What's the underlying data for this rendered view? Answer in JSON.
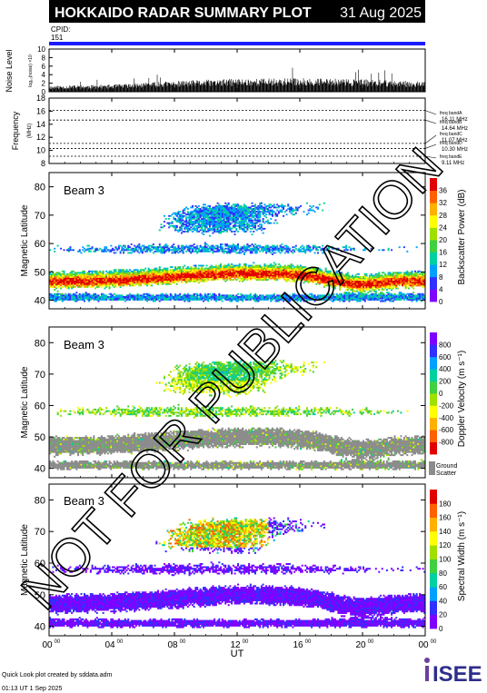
{
  "header": {
    "title": "HOKKAIDO RADAR SUMMARY PLOT",
    "date": "31 Aug 2025",
    "cpid_label": "CPID:",
    "cpid_value": "151"
  },
  "colors": {
    "header_bg": "#000000",
    "header_text": "#ffffff",
    "cpid_bar": "#1a1aff",
    "ground_scatter": "#8c8c8c",
    "watermark": "#000000"
  },
  "watermark": "NOT FOR PUBLICATION",
  "footer": {
    "credit": "Quick Look plot created by sddata.adm",
    "timestamp": "01:13 UT  1 Sep 2025",
    "logo_text": "ISEE"
  },
  "x_axis": {
    "label": "UT",
    "ticks": [
      {
        "hour": 0,
        "label": "00",
        "sup": "00"
      },
      {
        "hour": 4,
        "label": "04",
        "sup": "00"
      },
      {
        "hour": 8,
        "label": "08",
        "sup": "00"
      },
      {
        "hour": 12,
        "label": "12",
        "sup": "00"
      },
      {
        "hour": 16,
        "label": "16",
        "sup": "00"
      },
      {
        "hour": 20,
        "label": "20",
        "sup": "00"
      },
      {
        "hour": 24,
        "label": "00",
        "sup": "00"
      }
    ]
  },
  "chart_data": [
    {
      "type": "bar",
      "ylabel": "Noise Level",
      "ylabel_sub": "log₁₀(noise) ×10",
      "ylim": [
        0,
        10
      ],
      "yticks": [
        0,
        2,
        4,
        6,
        8,
        10
      ],
      "profile": [
        {
          "hour": 0,
          "value": 1.0
        },
        {
          "hour": 4,
          "value": 1.2
        },
        {
          "hour": 8,
          "value": 1.8
        },
        {
          "hour": 12,
          "value": 2.2
        },
        {
          "hour": 16,
          "value": 2.3
        },
        {
          "hour": 20,
          "value": 2.1
        },
        {
          "hour": 24,
          "value": 1.7
        }
      ]
    },
    {
      "type": "line",
      "ylabel": "Frequency",
      "ylabel_sub": "(MHz)",
      "ylim": [
        8,
        18
      ],
      "yticks": [
        8,
        10,
        12,
        14,
        16,
        18
      ],
      "bands": [
        {
          "name": "freq bandA",
          "mhz": 16.11,
          "label": "16.11 MHz"
        },
        {
          "name": "freq bandB",
          "mhz": 14.64,
          "label": "14.64 MHz"
        },
        {
          "name": "freq bandC",
          "mhz": 11.07,
          "label": "11.07 MHz"
        },
        {
          "name": "freq bandD",
          "mhz": 10.3,
          "label": "10.30 MHz"
        },
        {
          "name": "freq bandE",
          "mhz": 9.11,
          "label": "9.11 MHz"
        }
      ]
    },
    {
      "type": "heatmap",
      "beam": "Beam  3",
      "ylabel": "Magnetic Latitude",
      "ylim": [
        37,
        85
      ],
      "yticks": [
        40,
        50,
        60,
        70,
        80
      ],
      "colorbar": {
        "label": "Backscatter Power (dB)",
        "ticks": [
          0,
          4,
          8,
          12,
          16,
          20,
          24,
          28,
          32,
          36
        ],
        "range": [
          0,
          40
        ],
        "colors": [
          "#8000ff",
          "#3030ff",
          "#00a0ff",
          "#00d0a0",
          "#40d040",
          "#a0e000",
          "#ffff00",
          "#ffb000",
          "#ff6000",
          "#e00000"
        ]
      }
    },
    {
      "type": "heatmap",
      "beam": "Beam  3",
      "ylabel": "Magnetic Latitude",
      "ylim": [
        37,
        85
      ],
      "yticks": [
        40,
        50,
        60,
        70,
        80
      ],
      "colorbar": {
        "label": "Doppler Velocity (m s⁻¹)",
        "ticks": [
          800,
          600,
          400,
          200,
          0,
          -200,
          -400,
          -600,
          -800
        ],
        "range": [
          -1000,
          1000
        ],
        "colors": [
          "#e00000",
          "#ff6000",
          "#ffb000",
          "#ffff00",
          "#a0e000",
          "#40d040",
          "#00d0a0",
          "#00a0ff",
          "#3030ff",
          "#8000ff"
        ],
        "ground_label": [
          "Ground",
          "Scatter"
        ]
      }
    },
    {
      "type": "heatmap",
      "beam": "Beam  3",
      "ylabel": "Magnetic Latitude",
      "ylim": [
        37,
        85
      ],
      "yticks": [
        40,
        50,
        60,
        70,
        80
      ],
      "colorbar": {
        "label": "Spectral Width (m s⁻¹)",
        "ticks": [
          0,
          20,
          40,
          60,
          80,
          100,
          120,
          140,
          160,
          180
        ],
        "range": [
          0,
          200
        ],
        "colors": [
          "#8000ff",
          "#3030ff",
          "#00a0ff",
          "#00d0a0",
          "#40d040",
          "#a0e000",
          "#ffff00",
          "#ffb000",
          "#ff6000",
          "#e00000"
        ]
      }
    }
  ]
}
